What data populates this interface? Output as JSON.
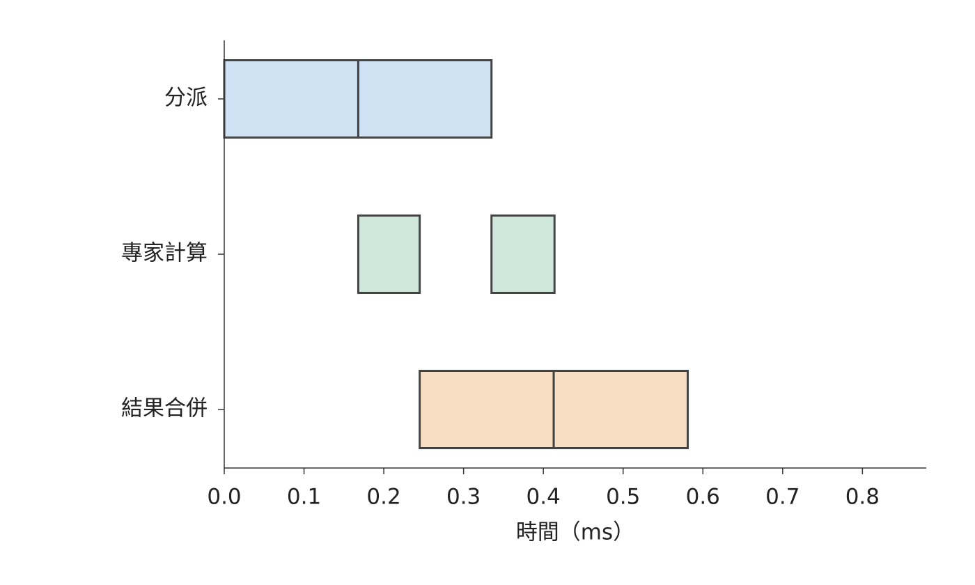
{
  "chart_data": {
    "type": "gantt",
    "xlabel": "時間（ms）",
    "xlim": [
      0,
      0.88
    ],
    "xticks": [
      {
        "value": 0,
        "label": "0.0"
      },
      0.1,
      0.2,
      0.3,
      0.4,
      0.5,
      0.6,
      0.7,
      0.8
    ],
    "edge_color": "#444444",
    "tasks": [
      {
        "label": "分派",
        "color": "#cfe2f3",
        "segments": [
          [
            0,
            0.168
          ],
          [
            0.168,
            0.335
          ]
        ]
      },
      {
        "label": "專家計算",
        "color": "#d0e8dc",
        "segments": [
          [
            0.168,
            0.245
          ],
          [
            0.335,
            0.414
          ]
        ]
      },
      {
        "label": "結果合併",
        "color": "#f8dec2",
        "segments": [
          [
            0.245,
            0.413
          ],
          [
            0.413,
            0.581
          ]
        ]
      }
    ]
  }
}
